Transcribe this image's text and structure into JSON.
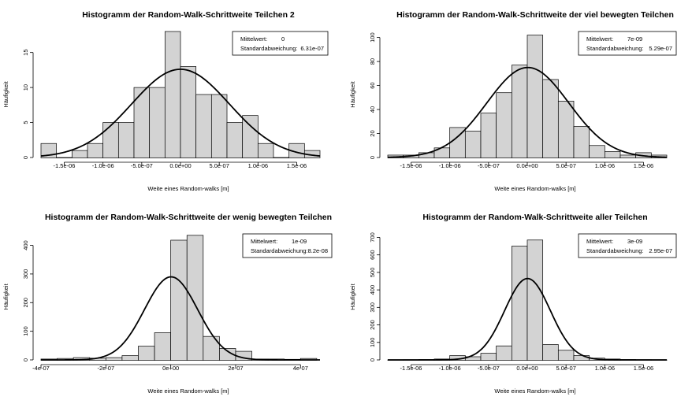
{
  "chart_data": [
    {
      "type": "bar",
      "title": "Histogramm der Random-Walk-Schrittweite Teilchen 2",
      "xlabel": "Weite eines Random-walks [m]",
      "ylabel": "Häufigkeit",
      "xlim": [
        -1.8e-06,
        1.8e-06
      ],
      "ylim": [
        0,
        18
      ],
      "xticks": [
        -1.5e-06,
        -1e-06,
        -5e-07,
        0,
        5e-07,
        1e-06,
        1.5e-06
      ],
      "xtick_labels": [
        "-1.5e-06",
        "-1.0e-06",
        "-5.0e-07",
        "0.0e+00",
        "5.0e-07",
        "1.0e-06",
        "1.5e-06"
      ],
      "yticks": [
        0,
        5,
        10,
        15
      ],
      "ytick_labels": [
        "0",
        "5",
        "10",
        "15"
      ],
      "bin_edges": [
        -1.8e-06,
        -1.6e-06,
        -1.4e-06,
        -1.2e-06,
        -1e-06,
        -8e-07,
        -6e-07,
        -4e-07,
        -2e-07,
        0,
        2e-07,
        4e-07,
        6e-07,
        8e-07,
        1e-06,
        1.2e-06,
        1.4e-06,
        1.6e-06,
        1.8e-06
      ],
      "values": [
        2,
        0,
        1,
        2,
        5,
        5,
        10,
        10,
        18,
        13,
        9,
        9,
        5,
        6,
        2,
        0,
        2,
        1
      ],
      "curve": {
        "mean": 0,
        "sd": 6.31e-07,
        "peak": 12.6
      },
      "legend": {
        "position": "top-right",
        "mean_label": "Mittelwert:",
        "mean_value": "0",
        "sd_label": "Standardabweichung:",
        "sd_value": "6.31e-07"
      }
    },
    {
      "type": "bar",
      "title": "Histogramm der Random-Walk-Schrittweite der viel bewegten Teilchen",
      "xlabel": "Weite eines Random-walks [m]",
      "ylabel": "Häufigkeit",
      "xlim": [
        -1.8e-06,
        1.8e-06
      ],
      "ylim": [
        0,
        105
      ],
      "xticks": [
        -1.5e-06,
        -1e-06,
        -5e-07,
        0,
        5e-07,
        1e-06,
        1.5e-06
      ],
      "xtick_labels": [
        "-1.5e-06",
        "-1.0e-06",
        "-5.0e-07",
        "0.0e+00",
        "5.0e-07",
        "1.0e-06",
        "1.5e-06"
      ],
      "yticks": [
        0,
        20,
        40,
        60,
        80,
        100
      ],
      "ytick_labels": [
        "0",
        "20",
        "40",
        "60",
        "80",
        "100"
      ],
      "bin_edges": [
        -1.8e-06,
        -1.6e-06,
        -1.4e-06,
        -1.2e-06,
        -1e-06,
        -8e-07,
        -6e-07,
        -4e-07,
        -2e-07,
        0,
        2e-07,
        4e-07,
        6e-07,
        8e-07,
        1e-06,
        1.2e-06,
        1.4e-06,
        1.6e-06,
        1.8e-06
      ],
      "values": [
        2,
        2,
        4,
        8,
        25,
        22,
        37,
        54,
        77,
        102,
        65,
        47,
        26,
        10,
        5,
        2,
        4,
        2
      ],
      "curve": {
        "mean": 7e-09,
        "sd": 5.29e-07,
        "peak": 75
      },
      "legend": {
        "position": "top-right",
        "mean_label": "Mittelwert:",
        "mean_value": "7e-09",
        "sd_label": "Standardabweichung:",
        "sd_value": "5.29e-07"
      }
    },
    {
      "type": "bar",
      "title": "Histogramm der Random-Walk-Schrittweite der wenig bewegten Teilchen",
      "xlabel": "Weite eines Random-walks [m]",
      "ylabel": "Häufigkeit",
      "xlim": [
        -4e-07,
        4.6e-07
      ],
      "ylim": [
        0,
        440
      ],
      "xticks": [
        -4e-07,
        -2e-07,
        0,
        2e-07,
        4e-07
      ],
      "xtick_labels": [
        "-4e-07",
        "-2e-07",
        "0e+00",
        "2e-07",
        "4e-07"
      ],
      "yticks": [
        0,
        100,
        200,
        300,
        400
      ],
      "ytick_labels": [
        "0",
        "100",
        "200",
        "300",
        "400"
      ],
      "bin_edges": [
        -4e-07,
        -3.5e-07,
        -3e-07,
        -2.5e-07,
        -2e-07,
        -1.5e-07,
        -1e-07,
        -5e-08,
        0,
        5e-08,
        1e-07,
        1.5e-07,
        2e-07,
        2.5e-07,
        3e-07,
        3.5e-07,
        4e-07,
        4.5e-07
      ],
      "values": [
        3,
        5,
        8,
        6,
        8,
        15,
        48,
        95,
        418,
        435,
        82,
        40,
        30,
        3,
        3,
        2,
        5
      ],
      "curve": {
        "mean": 1e-09,
        "sd": 8.2e-08,
        "peak": 290
      },
      "legend": {
        "position": "top-right",
        "mean_label": "Mittelwert:",
        "mean_value": "1e-09",
        "sd_label": "Standardabweichung:",
        "sd_value": "8.2e-08"
      }
    },
    {
      "type": "bar",
      "title": "Histogramm der Random-Walk-Schrittweite aller Teilchen",
      "xlabel": "Weite eines Random-walks [m]",
      "ylabel": "Häufigkeit",
      "xlim": [
        -1.8e-06,
        1.8e-06
      ],
      "ylim": [
        0,
        720
      ],
      "xticks": [
        -1.5e-06,
        -1e-06,
        -5e-07,
        0,
        5e-07,
        1e-06,
        1.5e-06
      ],
      "xtick_labels": [
        "-1.5e-06",
        "-1.0e-06",
        "-5.0e-07",
        "0.0e+00",
        "5.0e-07",
        "1.0e-06",
        "1.5e-06"
      ],
      "yticks": [
        0,
        100,
        200,
        300,
        400,
        500,
        600,
        700
      ],
      "ytick_labels": [
        "0",
        "100",
        "200",
        "300",
        "400",
        "500",
        "600",
        "700"
      ],
      "bin_edges": [
        -1.8e-06,
        -1.6e-06,
        -1.4e-06,
        -1.2e-06,
        -1e-06,
        -8e-07,
        -6e-07,
        -4e-07,
        -2e-07,
        0,
        2e-07,
        4e-07,
        6e-07,
        8e-07,
        1e-06,
        1.2e-06,
        1.4e-06,
        1.6e-06,
        1.8e-06
      ],
      "values": [
        0,
        1,
        2,
        5,
        25,
        18,
        38,
        80,
        650,
        685,
        88,
        55,
        25,
        10,
        5,
        2,
        1,
        0
      ],
      "curve": {
        "mean": 3e-09,
        "sd": 2.95e-07,
        "peak": 465
      },
      "legend": {
        "position": "top-right",
        "mean_label": "Mittelwert:",
        "mean_value": "3e-09",
        "sd_label": "Standardabweichung:",
        "sd_value": "2.95e-07"
      }
    }
  ],
  "colors": {
    "bar_fill": "#d3d3d3",
    "bar_stroke": "#000000",
    "curve": "#000000",
    "axis": "#000000"
  }
}
